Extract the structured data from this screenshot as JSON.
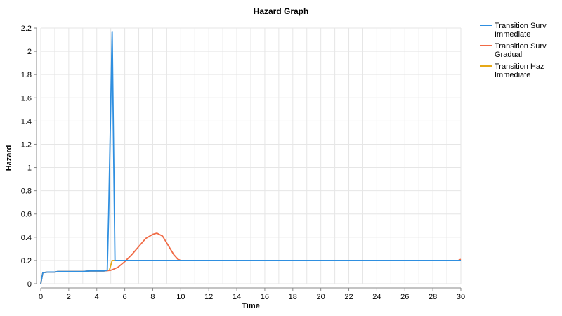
{
  "chart_data": {
    "type": "line",
    "title": "Hazard Graph",
    "xlabel": "Time",
    "ylabel": "Hazard",
    "xlim": [
      0,
      30
    ],
    "ylim": [
      0,
      2.2
    ],
    "x_ticks": [
      0,
      2,
      4,
      6,
      8,
      10,
      12,
      14,
      16,
      18,
      20,
      22,
      24,
      26,
      28,
      30
    ],
    "y_ticks": [
      0,
      0.2,
      0.4,
      0.6,
      0.8,
      1,
      1.2,
      1.4,
      1.6,
      1.8,
      2,
      2.2
    ],
    "grid": true,
    "legend_position": "top-right",
    "series": [
      {
        "name": "Transition Surv Immediate",
        "legend_lines": [
          "Transition Surv",
          "Immediate"
        ],
        "color": "#2f8fe0",
        "x": [
          0,
          0.15,
          0.5,
          1,
          1.2,
          2,
          3,
          3.5,
          4,
          4.5,
          4.75,
          4.85,
          5.1,
          5.3,
          5.5,
          6,
          10,
          20,
          30
        ],
        "y": [
          0,
          0.095,
          0.1,
          0.1,
          0.105,
          0.105,
          0.105,
          0.11,
          0.11,
          0.11,
          0.115,
          0.6,
          2.17,
          0.2,
          0.2,
          0.2,
          0.2,
          0.2,
          0.2
        ]
      },
      {
        "name": "Transition Surv Gradual",
        "legend_lines": [
          "Transition Surv",
          "Gradual"
        ],
        "color": "#f06a45",
        "x": [
          0,
          0.15,
          0.5,
          1,
          1.2,
          2,
          3,
          3.5,
          4,
          4.5,
          5,
          5.5,
          6,
          6.5,
          7,
          7.5,
          8,
          8.3,
          8.7,
          9,
          9.5,
          9.8,
          10,
          12,
          16,
          20,
          24,
          28,
          29.8,
          30
        ],
        "y": [
          0,
          0.095,
          0.1,
          0.1,
          0.105,
          0.105,
          0.105,
          0.11,
          0.11,
          0.11,
          0.115,
          0.14,
          0.19,
          0.25,
          0.32,
          0.39,
          0.425,
          0.435,
          0.41,
          0.35,
          0.25,
          0.21,
          0.2,
          0.2,
          0.2,
          0.2,
          0.2,
          0.2,
          0.2,
          0.21
        ]
      },
      {
        "name": "Transition Haz Immediate",
        "legend_lines": [
          "Transition Haz",
          "Immediate"
        ],
        "color": "#e6a817",
        "x": [
          0,
          0.15,
          0.5,
          1,
          1.2,
          2,
          3,
          3.5,
          4,
          4.5,
          4.9,
          5.1,
          5.5,
          10,
          20,
          30
        ],
        "y": [
          0,
          0.095,
          0.1,
          0.1,
          0.105,
          0.105,
          0.105,
          0.11,
          0.11,
          0.11,
          0.115,
          0.2,
          0.2,
          0.2,
          0.2,
          0.2
        ]
      }
    ]
  }
}
